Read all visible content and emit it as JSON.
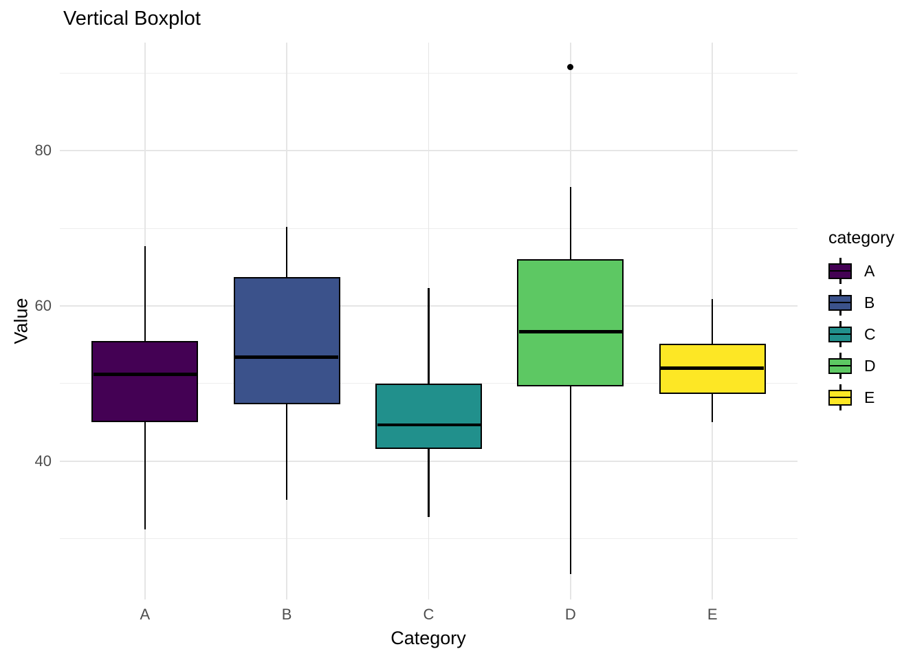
{
  "page": {
    "background": "#FFFFFF"
  },
  "chart_data": {
    "type": "boxplot",
    "orientation": "vertical",
    "title": "Vertical Boxplot",
    "xlabel": "Category",
    "ylabel": "Value",
    "categories": [
      "A",
      "B",
      "C",
      "D",
      "E"
    ],
    "y_axis": {
      "ticks": [
        40,
        60,
        80
      ],
      "minor_ticks": [
        30,
        50,
        70,
        90
      ],
      "range": [
        22.2,
        93.9
      ]
    },
    "grid": {
      "show": true,
      "major_color": "#E5E5E5",
      "minor_color": "#EDEDED"
    },
    "series": [
      {
        "name": "A",
        "color": "#440154",
        "whisker_low": 31.2,
        "q1": 45.0,
        "median": 51.2,
        "q3": 55.5,
        "whisker_high": 67.7,
        "outliers": []
      },
      {
        "name": "B",
        "color": "#3B528B",
        "whisker_low": 35.0,
        "q1": 47.3,
        "median": 53.4,
        "q3": 63.7,
        "whisker_high": 70.2,
        "outliers": []
      },
      {
        "name": "C",
        "color": "#21908C",
        "whisker_low": 32.8,
        "q1": 41.6,
        "median": 44.7,
        "q3": 50.0,
        "whisker_high": 62.3,
        "outliers": []
      },
      {
        "name": "D",
        "color": "#5DC863",
        "whisker_low": 25.5,
        "q1": 49.6,
        "median": 56.7,
        "q3": 66.0,
        "whisker_high": 75.3,
        "outliers": [
          90.8
        ]
      },
      {
        "name": "E",
        "color": "#FDE725",
        "whisker_low": 45.0,
        "q1": 48.7,
        "median": 52.0,
        "q3": 55.1,
        "whisker_high": 60.9,
        "outliers": []
      }
    ],
    "legend": {
      "title": "category",
      "position": "right",
      "entries": [
        "A",
        "B",
        "C",
        "D",
        "E"
      ]
    },
    "stroke_color": "#000000",
    "text_color": "#000000",
    "tick_label_color": "#4D4D4D"
  }
}
